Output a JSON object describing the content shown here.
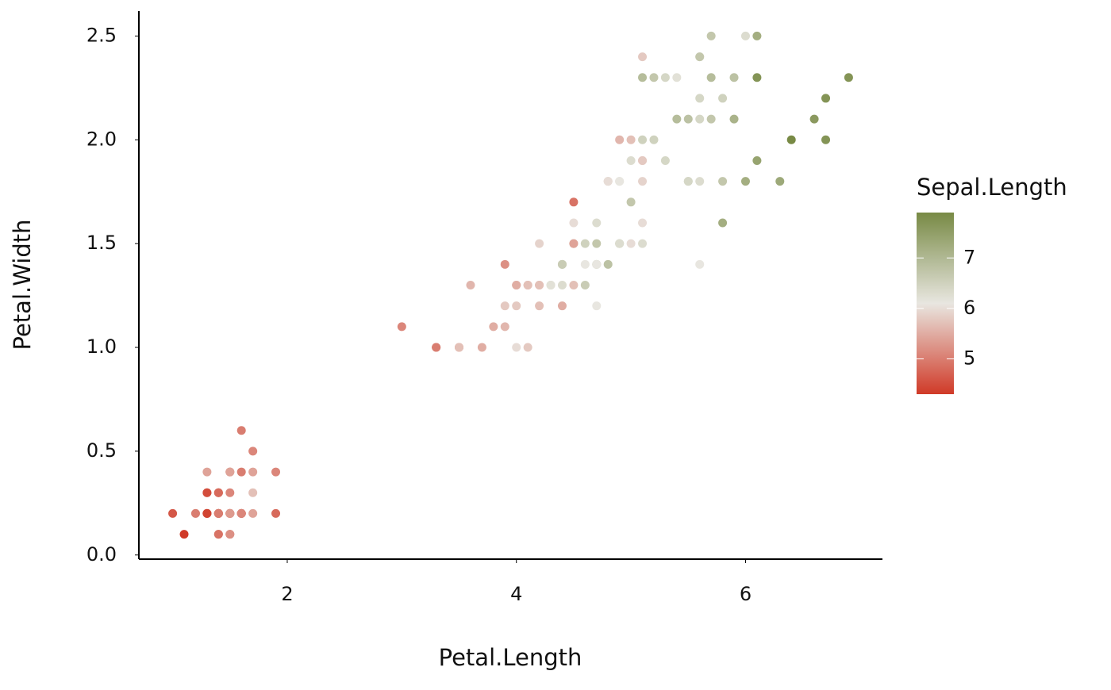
{
  "chart_data": {
    "type": "scatter",
    "x_label": "Petal.Length",
    "y_label": "Petal.Width",
    "x": [
      1.4,
      1.4,
      1.3,
      1.5,
      1.4,
      1.7,
      1.4,
      1.5,
      1.4,
      1.5,
      1.5,
      1.6,
      1.4,
      1.1,
      1.2,
      1.5,
      1.3,
      1.4,
      1.7,
      1.5,
      1.7,
      1.5,
      1.0,
      1.7,
      1.9,
      1.6,
      1.6,
      1.5,
      1.4,
      1.6,
      1.6,
      1.5,
      1.5,
      1.4,
      1.5,
      1.2,
      1.3,
      1.4,
      1.3,
      1.5,
      1.3,
      1.3,
      1.3,
      1.6,
      1.9,
      1.4,
      1.6,
      1.4,
      1.5,
      1.4,
      4.7,
      4.5,
      4.9,
      4.0,
      4.6,
      4.5,
      4.7,
      3.3,
      4.6,
      3.9,
      3.5,
      4.2,
      4.0,
      4.7,
      3.6,
      4.4,
      4.5,
      4.1,
      4.5,
      3.9,
      4.8,
      4.0,
      4.9,
      4.7,
      4.3,
      4.4,
      4.8,
      5.0,
      4.5,
      3.5,
      3.8,
      3.7,
      3.9,
      5.1,
      4.5,
      4.5,
      4.7,
      4.4,
      4.1,
      4.0,
      4.4,
      4.6,
      4.0,
      3.3,
      4.2,
      4.2,
      4.2,
      4.3,
      3.0,
      4.1,
      6.0,
      5.1,
      5.9,
      5.6,
      5.8,
      6.6,
      4.5,
      6.3,
      5.8,
      6.1,
      5.1,
      5.3,
      5.5,
      5.0,
      5.1,
      5.3,
      5.5,
      6.7,
      6.9,
      5.0,
      5.7,
      4.9,
      6.7,
      4.9,
      5.7,
      6.0,
      4.8,
      4.9,
      5.6,
      5.8,
      6.1,
      6.4,
      5.6,
      5.1,
      5.6,
      6.1,
      5.6,
      5.5,
      4.8,
      5.4,
      5.6,
      5.1,
      5.1,
      5.9,
      5.7,
      5.2,
      5.0,
      5.2,
      5.4,
      5.1
    ],
    "values": [
      0.2,
      0.2,
      0.2,
      0.2,
      0.2,
      0.4,
      0.3,
      0.2,
      0.2,
      0.1,
      0.2,
      0.2,
      0.1,
      0.1,
      0.2,
      0.4,
      0.4,
      0.3,
      0.3,
      0.3,
      0.2,
      0.4,
      0.2,
      0.5,
      0.2,
      0.2,
      0.4,
      0.2,
      0.2,
      0.2,
      0.2,
      0.4,
      0.1,
      0.2,
      0.2,
      0.2,
      0.2,
      0.1,
      0.2,
      0.2,
      0.3,
      0.3,
      0.2,
      0.6,
      0.4,
      0.3,
      0.2,
      0.2,
      0.2,
      0.2,
      1.4,
      1.5,
      1.5,
      1.3,
      1.5,
      1.3,
      1.6,
      1.0,
      1.3,
      1.4,
      1.0,
      1.5,
      1.0,
      1.4,
      1.3,
      1.4,
      1.5,
      1.0,
      1.5,
      1.1,
      1.8,
      1.3,
      1.5,
      1.2,
      1.3,
      1.4,
      1.4,
      1.7,
      1.5,
      1.0,
      1.1,
      1.0,
      1.2,
      1.6,
      1.5,
      1.6,
      1.5,
      1.3,
      1.3,
      1.3,
      1.2,
      1.4,
      1.2,
      1.0,
      1.3,
      1.2,
      1.3,
      1.3,
      1.1,
      1.3,
      2.5,
      1.9,
      2.1,
      1.8,
      2.2,
      2.1,
      1.7,
      1.8,
      1.8,
      2.5,
      2.0,
      1.9,
      2.1,
      2.0,
      2.4,
      2.3,
      1.8,
      2.2,
      2.3,
      1.5,
      2.3,
      2.0,
      2.0,
      1.8,
      2.1,
      1.8,
      1.8,
      1.8,
      2.1,
      1.6,
      1.9,
      2.0,
      2.2,
      1.5,
      1.4,
      2.3,
      2.4,
      1.8,
      1.8,
      2.1,
      2.4,
      2.3,
      1.9,
      2.3,
      2.5,
      2.3,
      1.9,
      2.0,
      2.3,
      1.8
    ],
    "color_values": [
      5.1,
      4.9,
      4.7,
      4.6,
      5.0,
      5.4,
      4.6,
      5.0,
      4.4,
      4.9,
      5.4,
      4.8,
      4.8,
      4.3,
      5.8,
      5.7,
      5.4,
      5.1,
      5.7,
      5.1,
      5.4,
      5.1,
      4.6,
      5.1,
      4.8,
      5.0,
      5.0,
      5.2,
      5.2,
      4.7,
      4.8,
      5.4,
      5.2,
      5.5,
      4.9,
      5.0,
      5.5,
      4.9,
      4.4,
      5.1,
      5.0,
      4.5,
      4.4,
      5.0,
      5.1,
      4.8,
      5.1,
      4.6,
      5.3,
      5.0,
      7.0,
      6.4,
      6.9,
      5.5,
      6.5,
      5.7,
      6.3,
      4.9,
      6.6,
      5.2,
      5.0,
      5.9,
      6.0,
      6.1,
      5.6,
      6.7,
      5.6,
      5.8,
      6.2,
      5.6,
      5.9,
      6.1,
      6.3,
      6.1,
      6.4,
      6.6,
      6.8,
      6.7,
      6.0,
      5.7,
      5.5,
      5.5,
      5.8,
      6.0,
      5.4,
      6.0,
      6.7,
      6.3,
      5.6,
      5.5,
      5.5,
      6.1,
      5.8,
      5.0,
      5.6,
      5.7,
      5.7,
      6.2,
      5.1,
      5.7,
      6.3,
      5.8,
      7.1,
      6.3,
      6.5,
      7.6,
      4.9,
      7.3,
      6.7,
      7.2,
      6.5,
      6.4,
      6.8,
      5.7,
      5.8,
      6.4,
      6.5,
      7.7,
      7.7,
      6.0,
      6.9,
      5.6,
      7.7,
      6.3,
      6.7,
      7.2,
      6.2,
      6.1,
      6.4,
      7.2,
      7.4,
      7.9,
      6.4,
      6.3,
      6.1,
      7.7,
      6.3,
      6.4,
      6.0,
      6.9,
      6.7,
      6.9,
      5.8,
      6.8,
      6.7,
      6.7,
      6.3,
      6.5,
      6.2,
      5.9
    ],
    "xlim": [
      0.705,
      7.195
    ],
    "xticks": [
      2,
      4,
      6
    ],
    "ylim": [
      -0.02,
      2.62
    ],
    "yticks": [
      {
        "value": 0,
        "label": "0.0"
      },
      0.5,
      {
        "value": 1,
        "label": "1.0"
      },
      1.5,
      {
        "value": 2,
        "label": "2.0"
      },
      2.5
    ],
    "colorbar": {
      "title": "Sepal.Length",
      "limits": [
        4.3,
        7.9
      ],
      "ticks": [
        5,
        6,
        7
      ],
      "low": "#d03a28",
      "mid": "#e8e6e0",
      "high": "#788a45",
      "midpoint": 6.1
    }
  }
}
